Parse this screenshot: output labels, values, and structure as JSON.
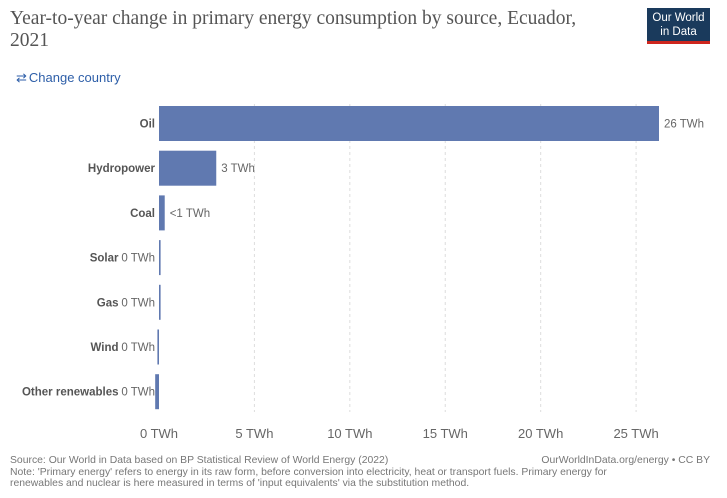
{
  "header": {
    "title": "Year-to-year change in primary energy consumption by source, Ecuador, 2021",
    "logo_line1": "Our World",
    "logo_line2": "in Data",
    "change_country": "Change country"
  },
  "chart_data": {
    "type": "bar",
    "orientation": "horizontal",
    "title": "Year-to-year change in primary energy consumption by source, Ecuador, 2021",
    "unit": "TWh",
    "categories": [
      "Oil",
      "Hydropower",
      "Coal",
      "Solar",
      "Gas",
      "Wind",
      "Other renewables"
    ],
    "values": [
      26.2,
      3.0,
      0.3,
      0.0,
      0.01,
      -0.01,
      -0.2
    ],
    "value_labels": [
      "26 TWh",
      "3 TWh",
      "<1 TWh",
      "0 TWh",
      "0 TWh",
      "0 TWh",
      "0 TWh"
    ],
    "xticks": [
      0,
      5,
      10,
      15,
      20,
      25
    ],
    "xtick_labels": [
      "0 TWh",
      "5 TWh",
      "10 TWh",
      "15 TWh",
      "20 TWh",
      "25 TWh"
    ],
    "xlim": [
      0,
      26.2
    ],
    "grid": true,
    "colors": {
      "bar": "#6079b0",
      "grid": "#dddddd",
      "text": "#5b5b5b"
    }
  },
  "footer": {
    "source": "Source: Our World in Data based on BP Statistical Review of World Energy (2022)",
    "note_line1": "Note: 'Primary energy' refers to energy in its raw form, before conversion into electricity, heat or transport fuels. Primary energy for",
    "note_line2": "renewables and nuclear is here measured in terms of 'input equivalents' via the substitution method.",
    "credit": "OurWorldInData.org/energy • CC BY"
  }
}
